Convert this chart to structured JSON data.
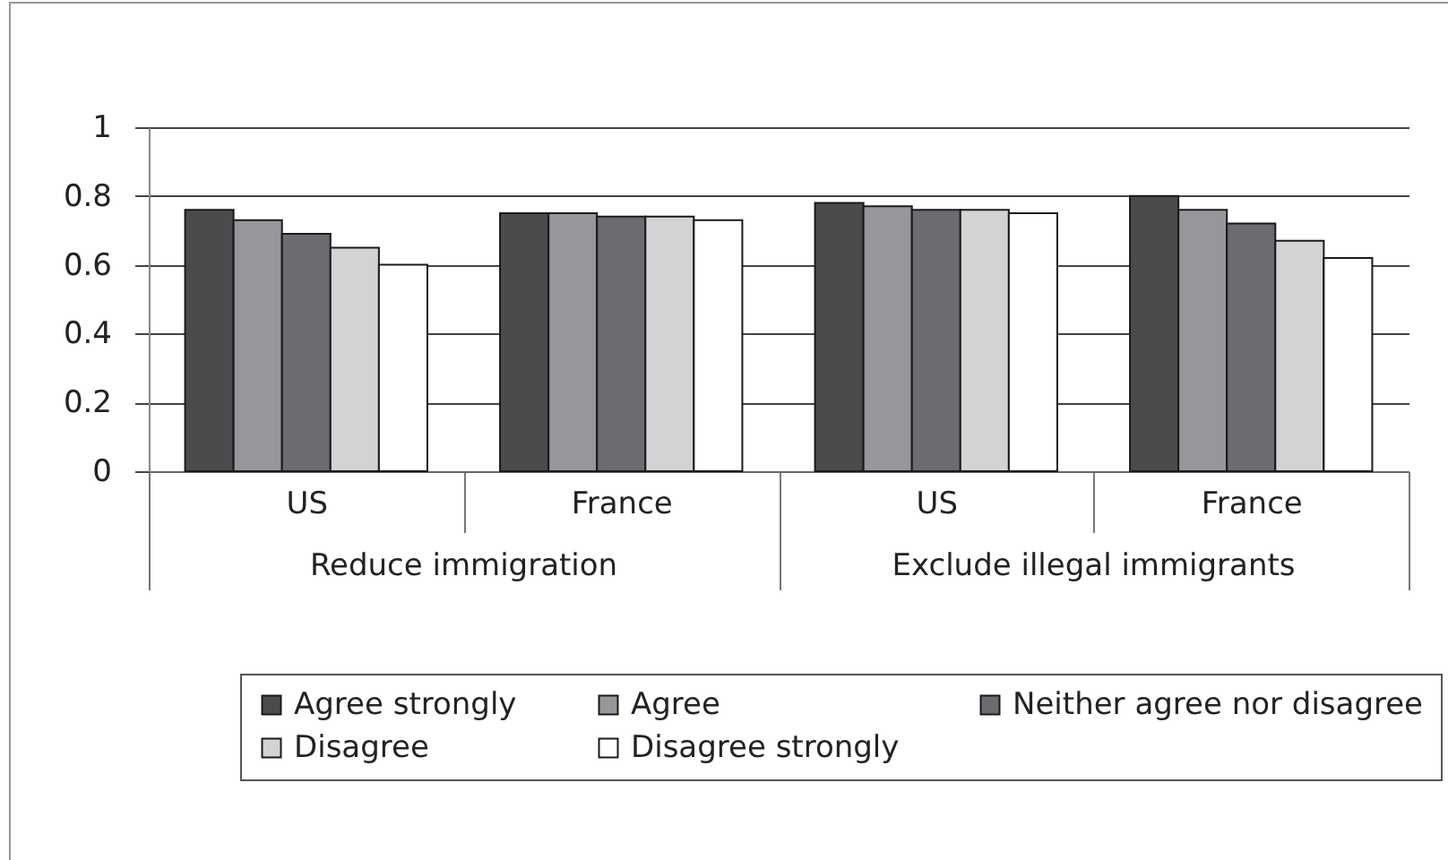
{
  "chart_data": {
    "type": "bar",
    "categories": [
      "US",
      "France",
      "US",
      "France"
    ],
    "series": [
      {
        "name": "Agree strongly",
        "color": "#4a4b4d",
        "values": [
          0.76,
          0.75,
          0.78,
          0.8
        ]
      },
      {
        "name": "Agree",
        "color": "#96979a",
        "values": [
          0.73,
          0.75,
          0.77,
          0.76
        ]
      },
      {
        "name": "Neither agree nor disagree",
        "color": "#6b6c70",
        "values": [
          0.69,
          0.74,
          0.76,
          0.72
        ]
      },
      {
        "name": "Disagree",
        "color": "#d2d3d5",
        "values": [
          0.65,
          0.74,
          0.76,
          0.67
        ]
      },
      {
        "name": "Disagree strongly",
        "color": "#ffffff",
        "values": [
          0.6,
          0.73,
          0.75,
          0.62
        ]
      }
    ],
    "annotations": [
      "Reduce immigration",
      "Exclude illegal immigrants"
    ],
    "ylim": [
      0,
      1
    ],
    "yticks": [
      0,
      0.2,
      0.4,
      0.6,
      0.8,
      1
    ],
    "grid": "y",
    "legend": "bottom"
  }
}
